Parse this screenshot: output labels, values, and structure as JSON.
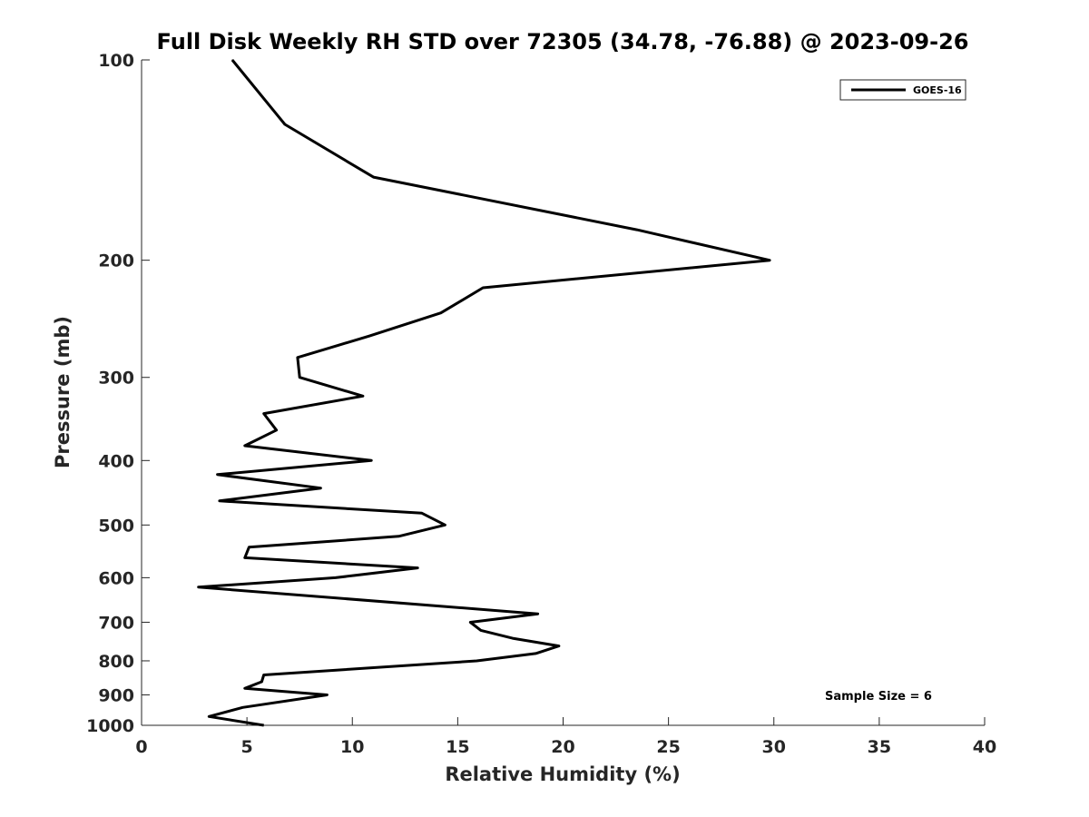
{
  "chart_data": {
    "type": "line",
    "title": "Full Disk Weekly RH STD over 72305 (34.78, -76.88) @ 2023-09-26",
    "xlabel": "Relative Humidity (%)",
    "ylabel": "Pressure (mb)",
    "xlim": [
      0,
      40
    ],
    "ylim": [
      100,
      1000
    ],
    "y_scale": "log",
    "y_reversed": true,
    "x_ticks": [
      "0",
      "5",
      "10",
      "15",
      "20",
      "25",
      "30",
      "35",
      "40"
    ],
    "y_ticks": [
      "100",
      "200",
      "300",
      "400",
      "500",
      "600",
      "700",
      "800",
      "900",
      "1000"
    ],
    "grid": false,
    "legend_position": "top-right",
    "annotation": "Sample Size = 6",
    "series": [
      {
        "name": "GOES-16",
        "color": "#000000",
        "points": [
          [
            4.3,
            100
          ],
          [
            6.8,
            125
          ],
          [
            11.0,
            150
          ],
          [
            23.5,
            180
          ],
          [
            29.8,
            200
          ],
          [
            16.2,
            220
          ],
          [
            14.2,
            240
          ],
          [
            10.8,
            260
          ],
          [
            7.4,
            280
          ],
          [
            7.5,
            300
          ],
          [
            10.5,
            320
          ],
          [
            5.8,
            340
          ],
          [
            6.4,
            360
          ],
          [
            4.9,
            380
          ],
          [
            10.9,
            400
          ],
          [
            3.6,
            420
          ],
          [
            8.5,
            440
          ],
          [
            3.7,
            460
          ],
          [
            13.3,
            480
          ],
          [
            14.4,
            500
          ],
          [
            12.2,
            520
          ],
          [
            5.1,
            540
          ],
          [
            4.9,
            560
          ],
          [
            13.1,
            580
          ],
          [
            9.2,
            600
          ],
          [
            2.7,
            620
          ],
          [
            18.8,
            680
          ],
          [
            15.6,
            700
          ],
          [
            16.1,
            720
          ],
          [
            17.6,
            740
          ],
          [
            19.8,
            760
          ],
          [
            18.7,
            780
          ],
          [
            15.9,
            800
          ],
          [
            5.8,
            840
          ],
          [
            5.7,
            860
          ],
          [
            4.9,
            880
          ],
          [
            8.8,
            900
          ],
          [
            4.8,
            940
          ],
          [
            3.2,
            970
          ],
          [
            5.8,
            1000
          ]
        ]
      }
    ]
  }
}
